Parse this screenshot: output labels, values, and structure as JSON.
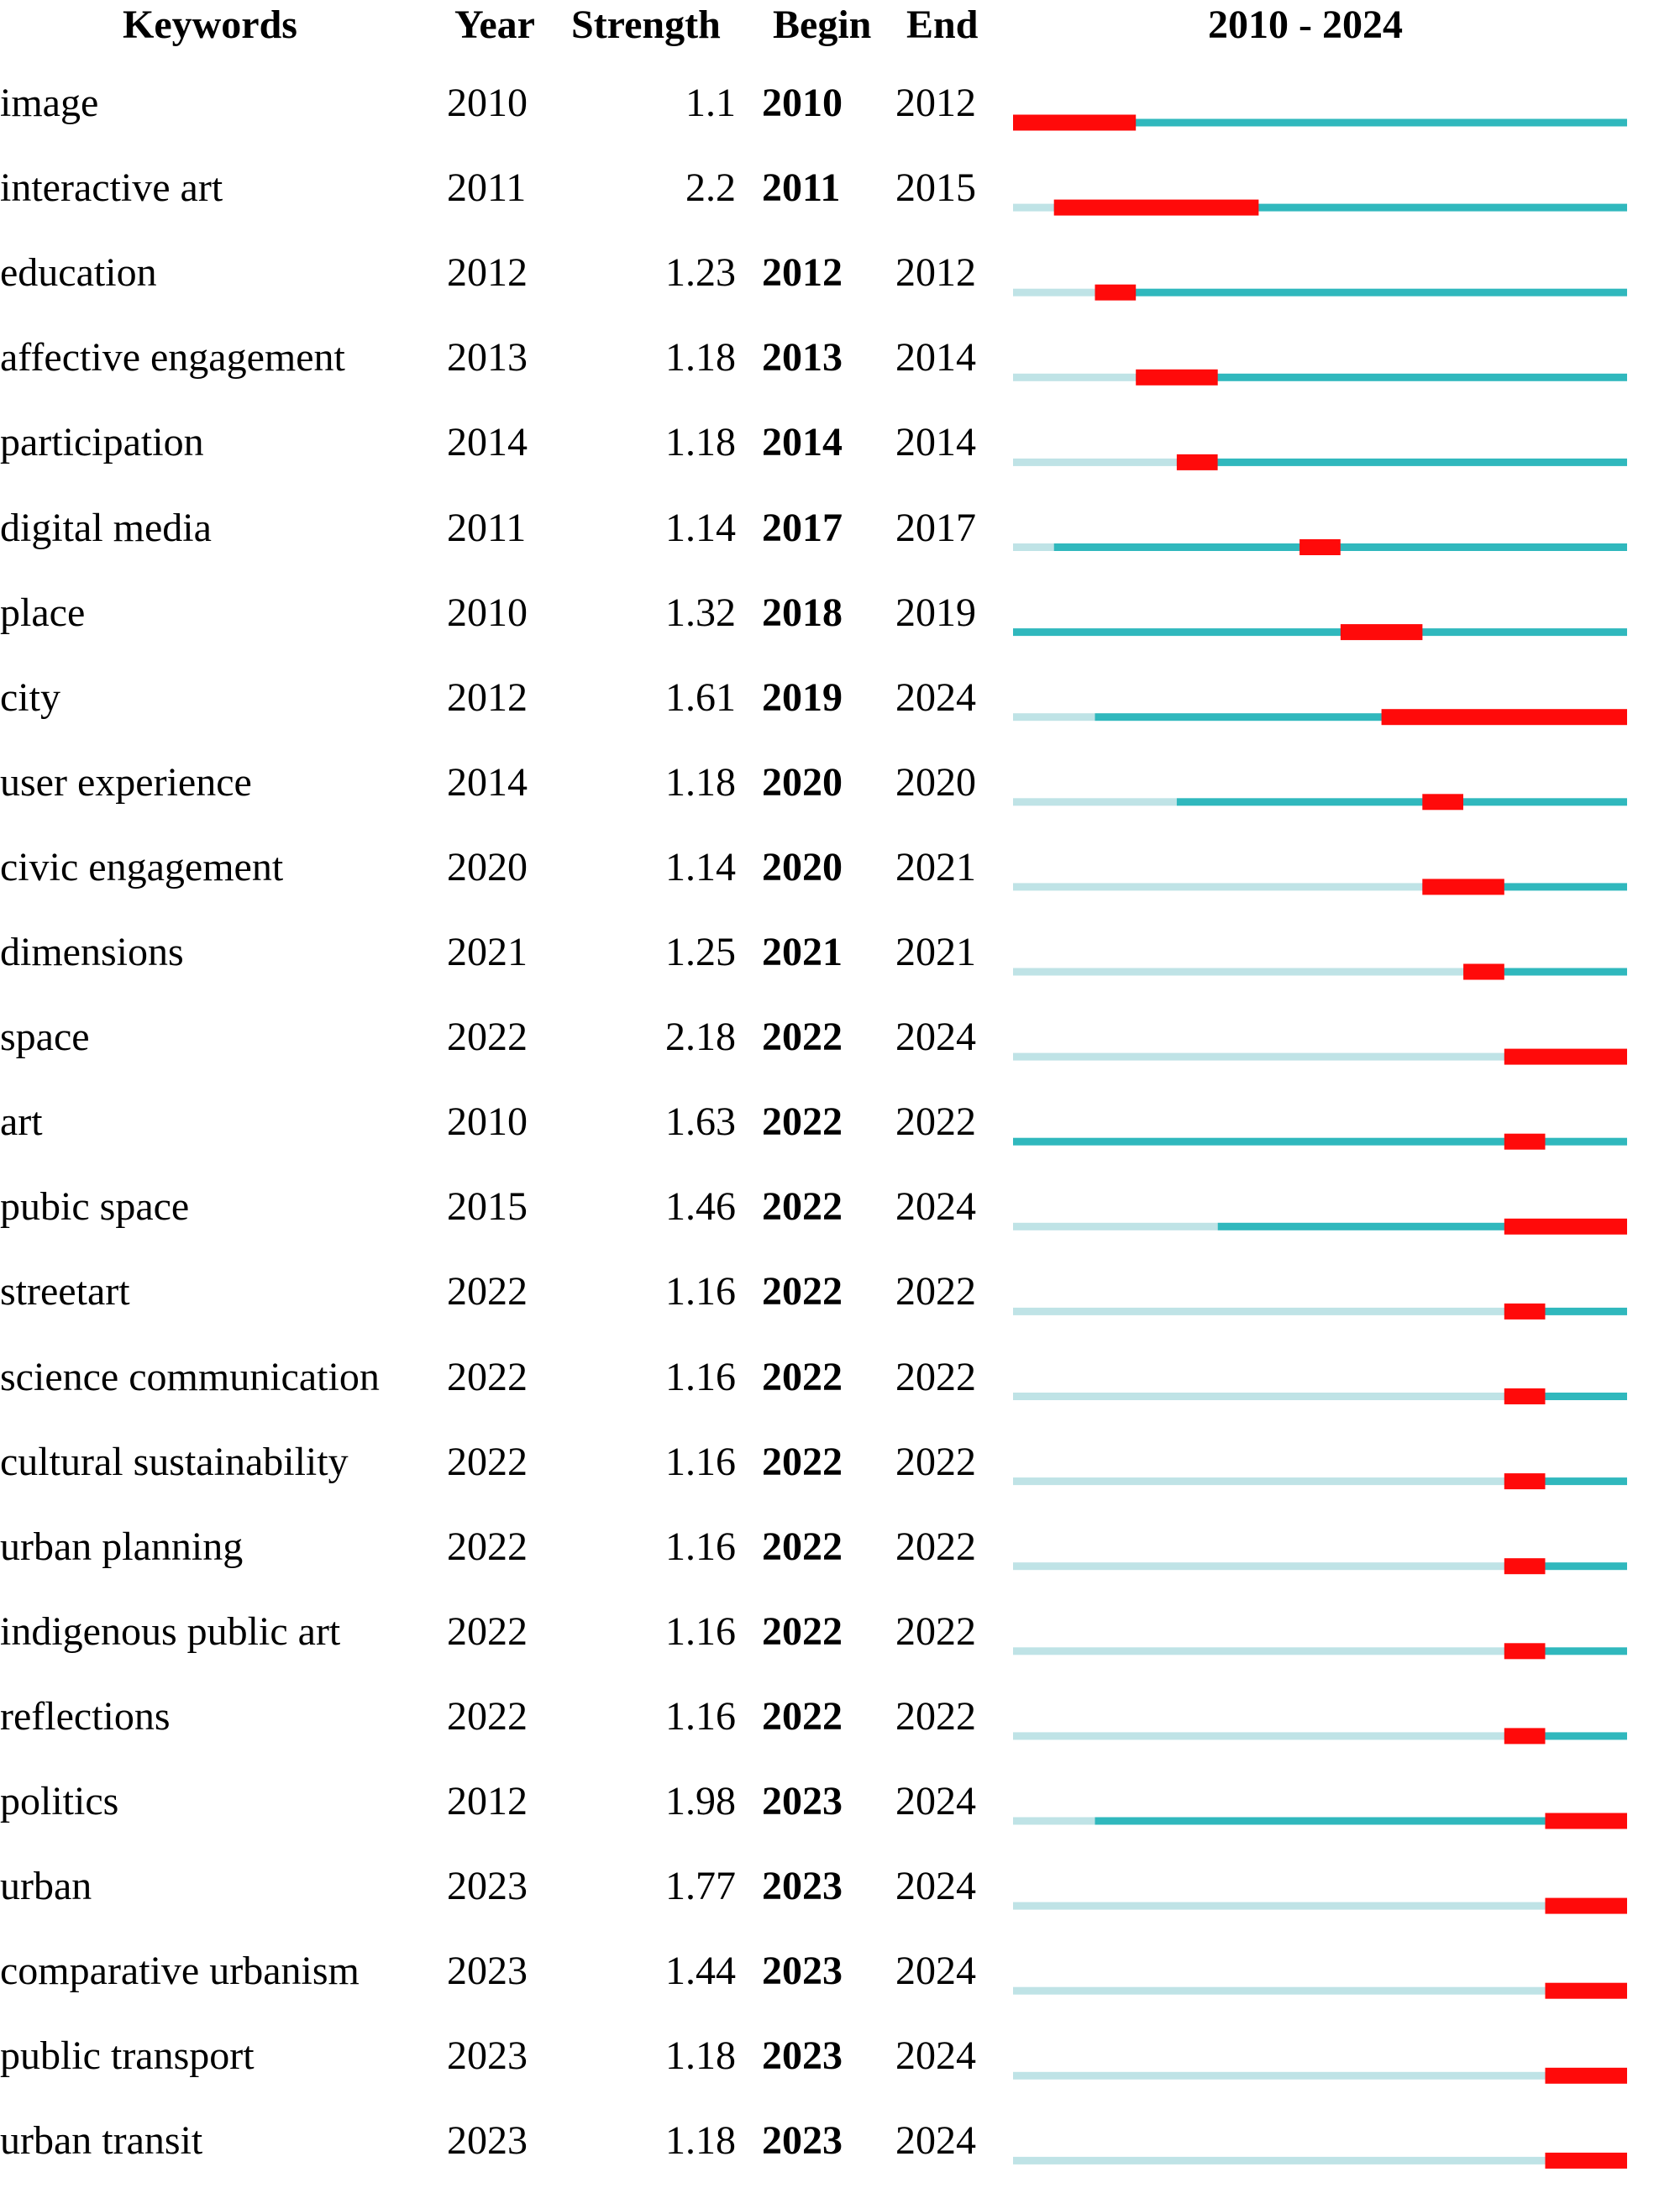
{
  "chart_data": {
    "type": "table",
    "headers": {
      "keywords": "Keywords",
      "year": "Year",
      "strength": "Strength",
      "begin": "Begin",
      "end": "End",
      "range": "2010 - 2024"
    },
    "timeline": {
      "start": 2010,
      "end": 2024
    },
    "colors": {
      "burst": "#ff0a0a",
      "active": "#30b8bd",
      "inactive": "#bfe3e6"
    },
    "rows": [
      {
        "keyword": "image",
        "year": "2010",
        "strength": "1.1",
        "begin": "2010",
        "end": "2012"
      },
      {
        "keyword": "interactive art",
        "year": "2011",
        "strength": "2.2",
        "begin": "2011",
        "end": "2015"
      },
      {
        "keyword": "education",
        "year": "2012",
        "strength": "1.23",
        "begin": "2012",
        "end": "2012"
      },
      {
        "keyword": "affective engagement",
        "year": "2013",
        "strength": "1.18",
        "begin": "2013",
        "end": "2014"
      },
      {
        "keyword": "participation",
        "year": "2014",
        "strength": "1.18",
        "begin": "2014",
        "end": "2014"
      },
      {
        "keyword": "digital media",
        "year": "2011",
        "strength": "1.14",
        "begin": "2017",
        "end": "2017"
      },
      {
        "keyword": "place",
        "year": "2010",
        "strength": "1.32",
        "begin": "2018",
        "end": "2019"
      },
      {
        "keyword": "city",
        "year": "2012",
        "strength": "1.61",
        "begin": "2019",
        "end": "2024"
      },
      {
        "keyword": "user experience",
        "year": "2014",
        "strength": "1.18",
        "begin": "2020",
        "end": "2020"
      },
      {
        "keyword": "civic engagement",
        "year": "2020",
        "strength": "1.14",
        "begin": "2020",
        "end": "2021"
      },
      {
        "keyword": "dimensions",
        "year": "2021",
        "strength": "1.25",
        "begin": "2021",
        "end": "2021"
      },
      {
        "keyword": "space",
        "year": "2022",
        "strength": "2.18",
        "begin": "2022",
        "end": "2024"
      },
      {
        "keyword": "art",
        "year": "2010",
        "strength": "1.63",
        "begin": "2022",
        "end": "2022"
      },
      {
        "keyword": "pubic space",
        "year": "2015",
        "strength": "1.46",
        "begin": "2022",
        "end": "2024"
      },
      {
        "keyword": "streetart",
        "year": "2022",
        "strength": "1.16",
        "begin": "2022",
        "end": "2022"
      },
      {
        "keyword": "science communication",
        "year": "2022",
        "strength": "1.16",
        "begin": "2022",
        "end": "2022"
      },
      {
        "keyword": "cultural sustainability",
        "year": "2022",
        "strength": "1.16",
        "begin": "2022",
        "end": "2022"
      },
      {
        "keyword": "urban planning",
        "year": "2022",
        "strength": "1.16",
        "begin": "2022",
        "end": "2022"
      },
      {
        "keyword": "indigenous public art",
        "year": "2022",
        "strength": "1.16",
        "begin": "2022",
        "end": "2022"
      },
      {
        "keyword": "reflections",
        "year": "2022",
        "strength": "1.16",
        "begin": "2022",
        "end": "2022"
      },
      {
        "keyword": "politics",
        "year": "2012",
        "strength": "1.98",
        "begin": "2023",
        "end": "2024"
      },
      {
        "keyword": "urban",
        "year": "2023",
        "strength": "1.77",
        "begin": "2023",
        "end": "2024"
      },
      {
        "keyword": "comparative urbanism",
        "year": "2023",
        "strength": "1.44",
        "begin": "2023",
        "end": "2024"
      },
      {
        "keyword": "public transport",
        "year": "2023",
        "strength": "1.18",
        "begin": "2023",
        "end": "2024"
      },
      {
        "keyword": "urban transit",
        "year": "2023",
        "strength": "1.18",
        "begin": "2023",
        "end": "2024"
      }
    ]
  }
}
